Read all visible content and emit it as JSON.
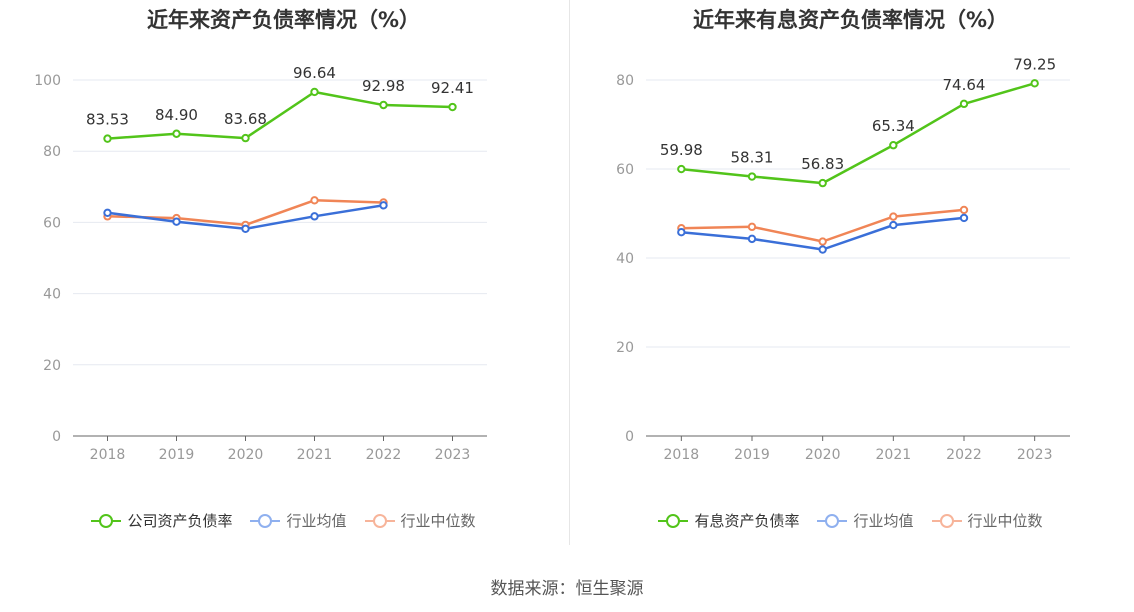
{
  "source_label": "数据来源：恒生聚源",
  "chart_data": [
    {
      "type": "line",
      "title": "近年来资产负债率情况（%）",
      "xlabel": "",
      "ylabel": "",
      "ylim": [
        0,
        100
      ],
      "yticks": [
        0,
        20,
        40,
        60,
        80,
        100
      ],
      "grid": true,
      "legend_position": "bottom",
      "categories": [
        "2018",
        "2019",
        "2020",
        "2021",
        "2022",
        "2023"
      ],
      "series": [
        {
          "name": "公司资产负债率",
          "color": "#52c41a",
          "show_labels": true,
          "values": [
            83.53,
            84.9,
            83.68,
            96.64,
            92.98,
            92.41
          ],
          "labels": [
            "83.53",
            "84.90",
            "83.68",
            "96.64",
            "92.98",
            "92.41"
          ]
        },
        {
          "name": "行业均值",
          "color": "#3a6fd8",
          "legend_color": "#8fb0ef",
          "show_labels": false,
          "values": [
            62.7,
            60.2,
            58.2,
            61.7,
            64.8,
            null
          ]
        },
        {
          "name": "行业中位数",
          "color": "#f08556",
          "legend_color": "#f7b49a",
          "show_labels": false,
          "values": [
            61.7,
            61.2,
            59.3,
            66.2,
            65.6,
            null
          ]
        }
      ]
    },
    {
      "type": "line",
      "title": "近年来有息资产负债率情况（%）",
      "xlabel": "",
      "ylabel": "",
      "ylim": [
        0,
        90
      ],
      "yticks": [
        0,
        20,
        40,
        60,
        80
      ],
      "grid": true,
      "legend_position": "bottom",
      "categories": [
        "2018",
        "2019",
        "2020",
        "2021",
        "2022",
        "2023"
      ],
      "series": [
        {
          "name": "有息资产负债率",
          "color": "#52c41a",
          "show_labels": true,
          "values": [
            59.98,
            58.31,
            56.83,
            65.34,
            74.64,
            79.25
          ],
          "labels": [
            "59.98",
            "58.31",
            "56.83",
            "65.34",
            "74.64",
            "79.25"
          ]
        },
        {
          "name": "行业均值",
          "color": "#3a6fd8",
          "legend_color": "#8fb0ef",
          "show_labels": false,
          "values": [
            45.8,
            44.3,
            41.9,
            47.4,
            49.0,
            null
          ]
        },
        {
          "name": "行业中位数",
          "color": "#f08556",
          "legend_color": "#f7b49a",
          "show_labels": false,
          "values": [
            46.7,
            47.0,
            43.7,
            49.3,
            50.8,
            null
          ]
        }
      ]
    }
  ]
}
